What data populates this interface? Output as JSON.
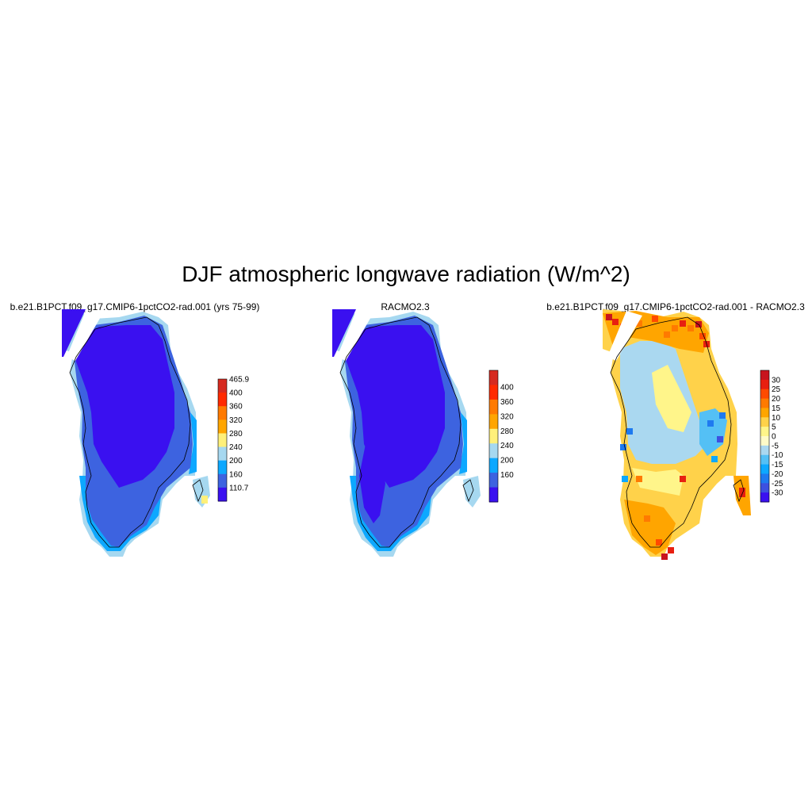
{
  "title": "DJF atmospheric longwave radiation (W/m^2)",
  "panels": [
    {
      "title": "b.e21.B1PCT.f09_g17.CMIP6-1pctCO2-rad.001 (yrs 75-99)",
      "colorbar": {
        "labels": [
          "465.9",
          "400",
          "360",
          "320",
          "280",
          "240",
          "200",
          "160",
          "110.7"
        ],
        "colors": [
          "#d62a20",
          "#ff2a00",
          "#ff7a00",
          "#ffa500",
          "#fff07a",
          "#a6d8f0",
          "#0da8ff",
          "#3d63e0",
          "#3a10f0"
        ]
      }
    },
    {
      "title": "RACMO2.3",
      "colorbar": {
        "labels": [
          "400",
          "360",
          "320",
          "280",
          "240",
          "200",
          "160"
        ],
        "colors": [
          "#d62a20",
          "#ff2a00",
          "#ff7a00",
          "#ffa500",
          "#fff07a",
          "#a6d8f0",
          "#0da8ff",
          "#3d63e0",
          "#3a10f0"
        ]
      }
    },
    {
      "title": "b.e21.B1PCT.f09_g17.CMIP6-1pctCO2-rad.001 - RACMO2.3",
      "colorbar": {
        "labels": [
          "30",
          "25",
          "20",
          "15",
          "10",
          "5",
          "0",
          "-5",
          "-10",
          "-15",
          "-20",
          "-25",
          "-30"
        ],
        "colors": [
          "#c8141e",
          "#e81f10",
          "#ff4a00",
          "#ff7a00",
          "#ffa500",
          "#ffd24a",
          "#fff58a",
          "#fffbc8",
          "#aad8f0",
          "#54c0f5",
          "#0da8ff",
          "#1e7af0",
          "#3d50e0",
          "#3a10f0"
        ]
      }
    }
  ],
  "map_colors": {
    "deep": "#3a10f0",
    "mid": "#3d63e0",
    "coast": "#0da8ff",
    "light": "#a6d8f0",
    "yellow": "#fff07a"
  }
}
